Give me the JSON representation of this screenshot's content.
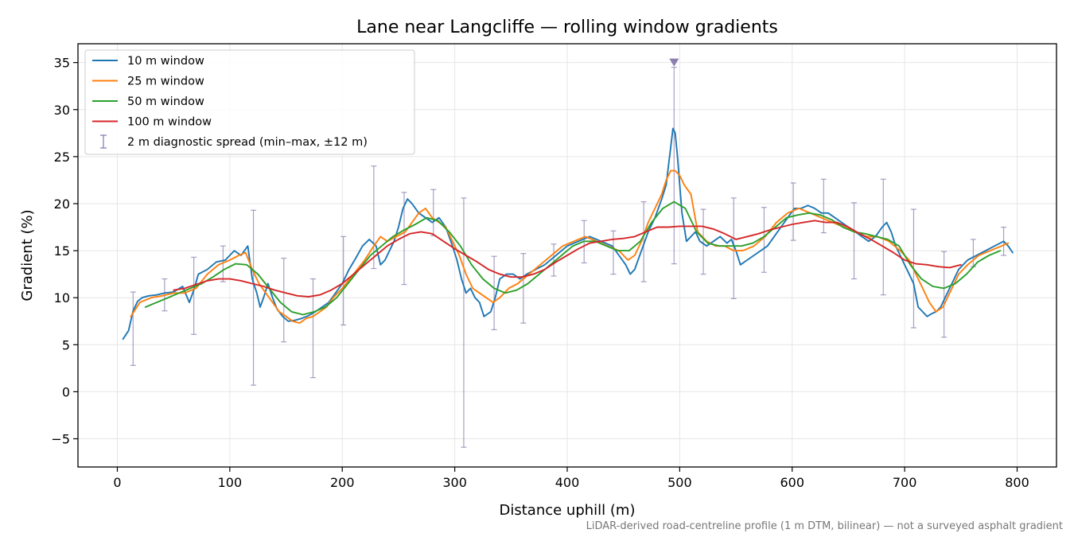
{
  "chart_data": {
    "type": "line",
    "title": "Lane near Langcliffe — rolling window gradients",
    "xlabel": "Distance uphill (m)",
    "ylabel": "Gradient (%)",
    "footnote": "LiDAR-derived road-centreline profile (1 m DTM, bilinear) — not a surveyed asphalt gradient",
    "xlim": [
      -35,
      835
    ],
    "ylim": [
      -8,
      37
    ],
    "xticks": [
      0,
      100,
      200,
      300,
      400,
      500,
      600,
      700,
      800
    ],
    "yticks": [
      -5,
      0,
      5,
      10,
      15,
      20,
      25,
      30,
      35
    ],
    "ytick_labels": [
      "−5",
      "0",
      "5",
      "10",
      "15",
      "20",
      "25",
      "30",
      "35"
    ],
    "grid": true,
    "legend_position": "top-left",
    "series": [
      {
        "name": "10 m window",
        "color": "#1f77b4",
        "x": [
          5,
          10,
          14,
          18,
          22,
          28,
          35,
          42,
          50,
          58,
          64,
          68,
          72,
          80,
          88,
          96,
          104,
          110,
          116,
          120,
          124,
          127,
          130,
          134,
          138,
          142,
          147,
          152,
          158,
          164,
          170,
          176,
          182,
          188,
          194,
          200,
          206,
          212,
          218,
          224,
          230,
          234,
          238,
          242,
          246,
          250,
          254,
          258,
          262,
          268,
          274,
          280,
          286,
          292,
          298,
          302,
          306,
          310,
          314,
          318,
          322,
          326,
          332,
          336,
          340,
          346,
          352,
          358,
          364,
          372,
          380,
          390,
          400,
          410,
          420,
          430,
          440,
          446,
          452,
          456,
          460,
          466,
          472,
          478,
          484,
          488,
          490,
          492,
          494,
          496,
          498,
          502,
          506,
          510,
          514,
          518,
          524,
          530,
          536,
          542,
          546,
          550,
          554,
          560,
          566,
          572,
          578,
          584,
          590,
          596,
          602,
          608,
          614,
          620,
          626,
          632,
          638,
          644,
          650,
          656,
          662,
          668,
          674,
          680,
          684,
          688,
          692,
          696,
          700,
          704,
          708,
          712,
          716,
          720,
          724,
          728,
          732,
          736,
          742,
          748,
          756,
          764,
          772,
          780,
          788,
          792,
          796
        ],
        "y": [
          5.6,
          6.5,
          8.6,
          9.6,
          10.0,
          10.2,
          10.3,
          10.5,
          10.6,
          11.2,
          9.5,
          10.8,
          12.5,
          13.0,
          13.8,
          14.0,
          15.0,
          14.5,
          15.5,
          12.0,
          10.5,
          9.0,
          10.0,
          11.5,
          10.0,
          8.8,
          8.0,
          7.5,
          7.6,
          7.8,
          8.1,
          8.5,
          9.0,
          9.5,
          10.5,
          11.5,
          13.0,
          14.2,
          15.5,
          16.2,
          15.5,
          13.5,
          14.0,
          15.0,
          16.0,
          17.5,
          19.5,
          20.5,
          20.0,
          19.0,
          18.5,
          18.0,
          18.5,
          17.5,
          15.5,
          14.0,
          12.0,
          10.5,
          11.0,
          10.0,
          9.5,
          8.0,
          8.5,
          10.0,
          12.0,
          12.5,
          12.5,
          12.0,
          12.5,
          13.0,
          13.5,
          14.5,
          15.5,
          16.0,
          16.5,
          16.0,
          15.5,
          14.5,
          13.5,
          12.5,
          13.0,
          15.0,
          17.0,
          18.5,
          20.5,
          22.0,
          24.0,
          26.0,
          28.0,
          27.5,
          25.0,
          19.0,
          16.0,
          16.5,
          17.0,
          16.0,
          15.5,
          16.0,
          16.5,
          15.8,
          16.2,
          15.0,
          13.5,
          14.0,
          14.5,
          15.0,
          15.5,
          16.5,
          17.5,
          18.5,
          19.5,
          19.5,
          19.8,
          19.5,
          19.0,
          19.0,
          18.5,
          18.0,
          17.5,
          17.0,
          16.5,
          16.0,
          16.5,
          17.5,
          18.0,
          17.0,
          15.5,
          14.5,
          13.5,
          12.5,
          11.5,
          9.0,
          8.5,
          8.0,
          8.3,
          8.5,
          9.0,
          10.0,
          11.5,
          13.0,
          14.0,
          14.5,
          15.0,
          15.5,
          16.0,
          15.5,
          14.8
        ]
      },
      {
        "name": "25 m window",
        "color": "#ff7f0e",
        "x": [
          12,
          20,
          30,
          40,
          50,
          60,
          70,
          80,
          90,
          100,
          108,
          114,
          120,
          126,
          132,
          138,
          144,
          150,
          156,
          162,
          168,
          174,
          180,
          186,
          192,
          200,
          210,
          220,
          228,
          234,
          240,
          248,
          256,
          262,
          268,
          274,
          280,
          286,
          292,
          298,
          304,
          310,
          316,
          322,
          328,
          334,
          340,
          348,
          356,
          366,
          376,
          386,
          396,
          406,
          416,
          426,
          436,
          446,
          454,
          460,
          466,
          472,
          478,
          484,
          488,
          492,
          496,
          500,
          504,
          510,
          516,
          524,
          532,
          540,
          548,
          556,
          566,
          576,
          586,
          596,
          606,
          616,
          626,
          636,
          646,
          656,
          666,
          676,
          686,
          696,
          704,
          710,
          716,
          722,
          728,
          734,
          740,
          748,
          756,
          766,
          776,
          786,
          792
        ],
        "y": [
          8.0,
          9.5,
          10.0,
          10.2,
          10.5,
          10.5,
          11.0,
          12.5,
          13.5,
          14.0,
          14.5,
          14.8,
          13.0,
          11.5,
          10.5,
          9.5,
          8.5,
          8.0,
          7.5,
          7.3,
          7.8,
          8.0,
          8.5,
          9.0,
          10.0,
          11.0,
          12.5,
          14.0,
          15.5,
          16.5,
          16.0,
          16.5,
          17.0,
          18.0,
          19.0,
          19.5,
          18.5,
          18.0,
          17.5,
          16.0,
          14.5,
          12.5,
          11.0,
          10.5,
          10.0,
          9.5,
          10.0,
          11.0,
          11.5,
          12.5,
          13.5,
          14.5,
          15.5,
          16.0,
          16.5,
          16.0,
          15.5,
          15.0,
          14.0,
          14.5,
          16.0,
          18.0,
          19.5,
          21.0,
          22.5,
          23.5,
          23.5,
          23.0,
          22.0,
          21.0,
          17.0,
          16.0,
          15.5,
          15.5,
          15.0,
          15.0,
          15.5,
          16.5,
          18.0,
          19.0,
          19.5,
          19.0,
          18.5,
          18.0,
          17.5,
          17.0,
          16.5,
          16.5,
          16.0,
          15.0,
          14.0,
          12.5,
          11.0,
          9.5,
          8.5,
          9.0,
          10.5,
          12.5,
          13.5,
          14.5,
          15.0,
          15.5,
          15.8
        ]
      },
      {
        "name": "50 m window",
        "color": "#2ca02c",
        "x": [
          25,
          35,
          45,
          55,
          65,
          75,
          85,
          95,
          105,
          115,
          125,
          135,
          145,
          155,
          165,
          175,
          185,
          195,
          205,
          215,
          225,
          235,
          245,
          255,
          265,
          275,
          285,
          295,
          305,
          315,
          325,
          335,
          345,
          355,
          365,
          375,
          385,
          395,
          405,
          415,
          425,
          435,
          445,
          455,
          465,
          475,
          485,
          495,
          505,
          515,
          525,
          535,
          545,
          555,
          565,
          575,
          585,
          595,
          605,
          615,
          625,
          635,
          645,
          655,
          665,
          675,
          685,
          695,
          705,
          715,
          725,
          735,
          745,
          755,
          765,
          775,
          785
        ],
        "y": [
          9.0,
          9.5,
          10.0,
          10.5,
          11.0,
          11.5,
          12.2,
          13.0,
          13.6,
          13.5,
          12.5,
          11.0,
          9.5,
          8.5,
          8.2,
          8.5,
          9.0,
          10.0,
          11.5,
          13.0,
          14.5,
          15.5,
          16.5,
          17.2,
          17.8,
          18.5,
          18.2,
          17.0,
          15.5,
          13.5,
          12.0,
          11.0,
          10.5,
          10.8,
          11.5,
          12.5,
          13.5,
          14.5,
          15.5,
          16.0,
          16.0,
          15.5,
          15.0,
          15.0,
          16.0,
          18.0,
          19.5,
          20.2,
          19.5,
          17.0,
          15.8,
          15.5,
          15.5,
          15.5,
          15.8,
          16.5,
          17.5,
          18.5,
          18.8,
          19.0,
          18.8,
          18.3,
          17.5,
          17.0,
          16.8,
          16.5,
          16.2,
          15.5,
          13.5,
          12.0,
          11.2,
          11.0,
          11.5,
          12.5,
          13.8,
          14.5,
          15.0
        ]
      },
      {
        "name": "100 m window",
        "color": "#d62728",
        "x": [
          50,
          60,
          70,
          80,
          90,
          100,
          110,
          120,
          130,
          140,
          150,
          160,
          170,
          180,
          190,
          200,
          210,
          220,
          230,
          240,
          250,
          260,
          270,
          280,
          290,
          300,
          310,
          320,
          330,
          340,
          350,
          360,
          370,
          380,
          390,
          400,
          410,
          420,
          430,
          440,
          450,
          460,
          470,
          480,
          490,
          500,
          510,
          520,
          530,
          540,
          550,
          560,
          570,
          580,
          590,
          600,
          610,
          620,
          630,
          640,
          650,
          660,
          670,
          680,
          690,
          700,
          710,
          720,
          730,
          740,
          750
        ],
        "y": [
          10.8,
          11.0,
          11.4,
          11.8,
          12.0,
          12.0,
          11.8,
          11.5,
          11.2,
          10.8,
          10.5,
          10.2,
          10.1,
          10.3,
          10.8,
          11.5,
          12.5,
          13.5,
          14.5,
          15.5,
          16.2,
          16.8,
          17.0,
          16.8,
          16.0,
          15.2,
          14.5,
          13.8,
          13.0,
          12.5,
          12.2,
          12.2,
          12.5,
          13.0,
          13.8,
          14.5,
          15.2,
          15.8,
          16.0,
          16.2,
          16.3,
          16.5,
          17.0,
          17.5,
          17.5,
          17.6,
          17.6,
          17.6,
          17.3,
          16.8,
          16.2,
          16.5,
          16.8,
          17.2,
          17.5,
          17.8,
          18.0,
          18.2,
          18.0,
          18.0,
          17.5,
          16.8,
          16.2,
          15.5,
          14.8,
          14.0,
          13.6,
          13.5,
          13.3,
          13.2,
          13.5
        ]
      }
    ],
    "diagnostic_spread": {
      "name": "2 m diagnostic spread (min–max, ±12 m)",
      "color": "#8b7fb0",
      "x": [
        14,
        42,
        68,
        94,
        121,
        148,
        174,
        201,
        228,
        255,
        281,
        308,
        335,
        361,
        388,
        415,
        441,
        468,
        495,
        521,
        548,
        575,
        601,
        628,
        655,
        681,
        708,
        735,
        761,
        788
      ],
      "low": [
        2.8,
        8.6,
        6.1,
        11.7,
        0.7,
        5.3,
        1.5,
        7.1,
        13.1,
        11.4,
        16.6,
        -5.9,
        6.6,
        7.3,
        12.3,
        13.7,
        12.5,
        11.7,
        13.6,
        12.5,
        9.9,
        12.7,
        16.1,
        16.9,
        12.0,
        10.3,
        6.8,
        5.8,
        13.3,
        14.5
      ],
      "high": [
        10.6,
        12.0,
        14.3,
        15.5,
        19.3,
        14.2,
        12.0,
        16.5,
        24.0,
        21.2,
        21.5,
        20.6,
        14.4,
        14.7,
        15.7,
        18.2,
        17.1,
        20.2,
        34.5,
        19.4,
        20.6,
        19.6,
        22.2,
        22.6,
        20.1,
        22.6,
        19.4,
        14.9,
        16.2,
        17.5
      ]
    },
    "marker": {
      "x": 495,
      "y": 35,
      "shape": "downward-triangle"
    }
  }
}
